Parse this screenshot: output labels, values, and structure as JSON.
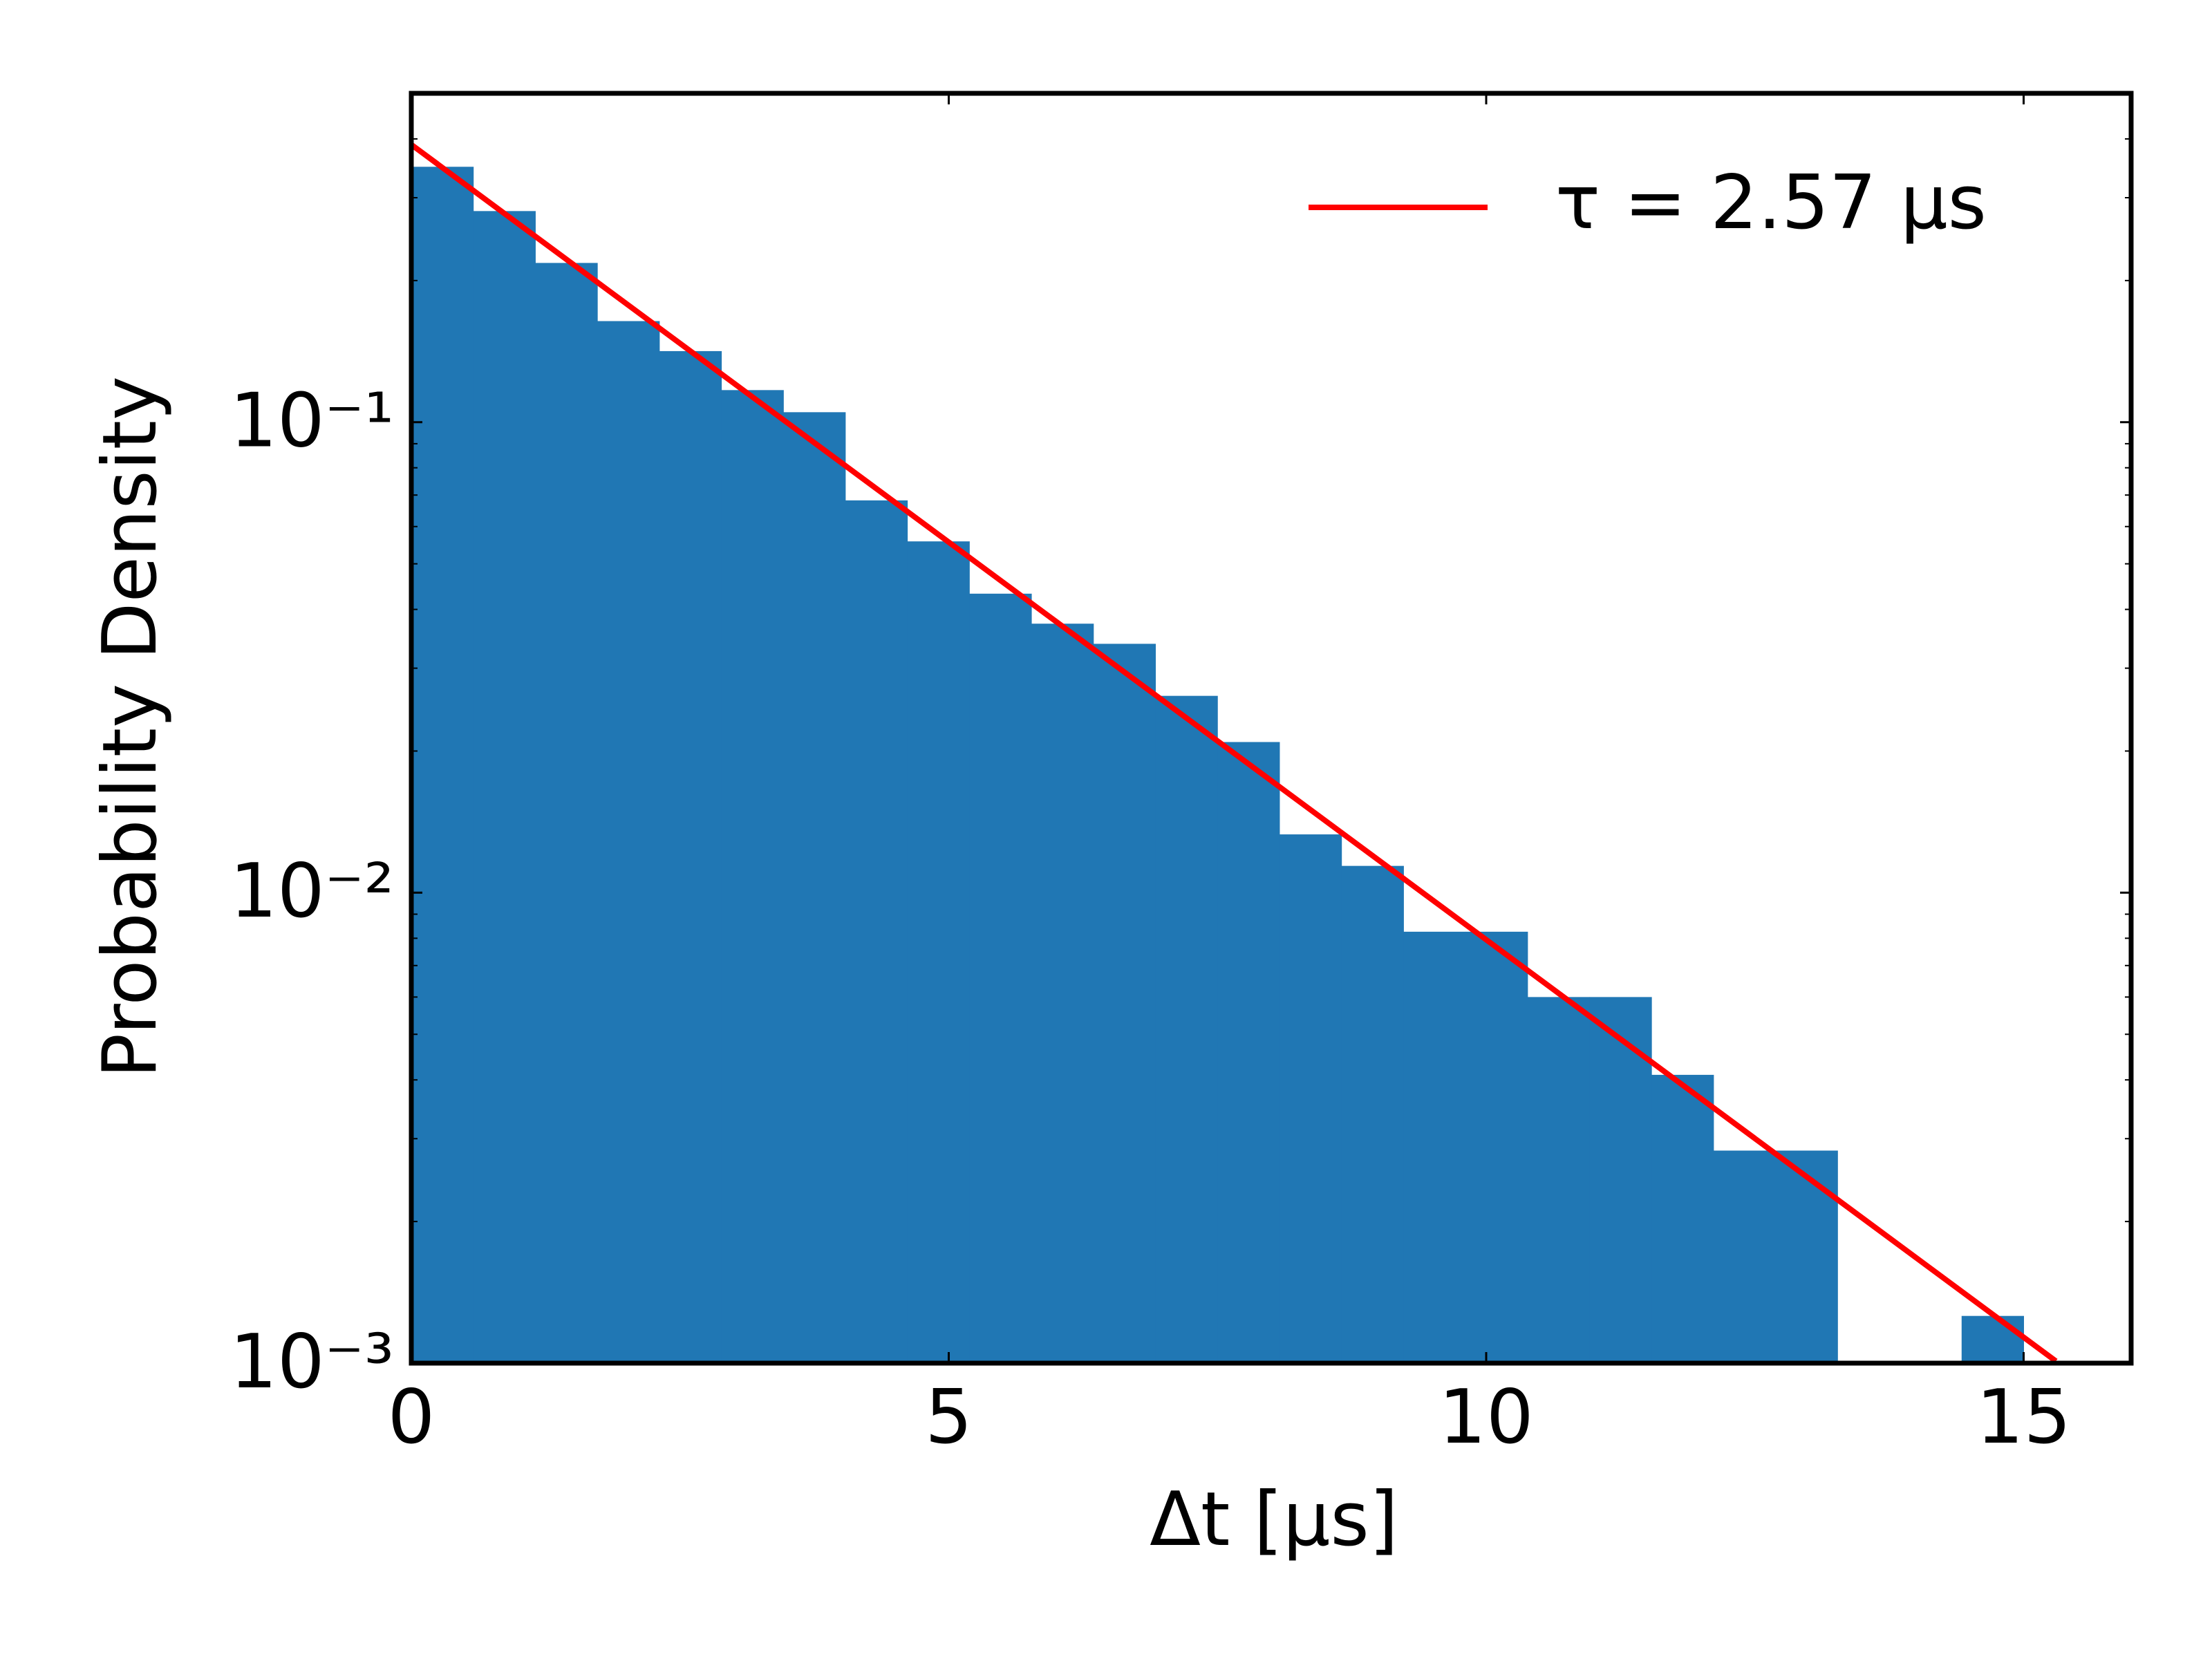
{
  "chart_data": {
    "type": "histogram",
    "xlabel": "Δt [μs]",
    "ylabel": "Probability Density",
    "bins": [
      0,
      0.577,
      1.154,
      1.731,
      2.308,
      2.885,
      3.462,
      4.038,
      4.615,
      5.192,
      5.769,
      6.346,
      6.923,
      7.5,
      8.077,
      8.654,
      9.231,
      9.808,
      10.385,
      10.962,
      11.538,
      12.115,
      12.692,
      13.269,
      13.846,
      14.423,
      15.0
    ],
    "values": [
      0.349,
      0.281,
      0.218,
      0.164,
      0.1416,
      0.117,
      0.105,
      0.0682,
      0.0558,
      0.0432,
      0.0373,
      0.0338,
      0.0262,
      0.0209,
      0.0133,
      0.0114,
      0.00826,
      0.00826,
      0.006,
      0.006,
      0.0041,
      0.00283,
      0.00283,
      0,
      0,
      0.00126
    ],
    "color": "#2077b4",
    "fit": {
      "name": "τ = 2.57 μs",
      "color": "#ff0000",
      "x": [
        0,
        15.3
      ],
      "values": [
        0.389,
        0.00101
      ]
    },
    "xlim": [
      0,
      16
    ],
    "xticks": [
      0,
      5,
      10,
      15
    ],
    "ylim": [
      0.001,
      0.5
    ],
    "yscale": "log",
    "yticks": [
      {
        "value": 0.001,
        "label": "10⁻³"
      },
      {
        "value": 0.01,
        "label": "10⁻²"
      },
      {
        "value": 0.1,
        "label": "10⁻¹"
      }
    ],
    "legend": "upper right"
  }
}
